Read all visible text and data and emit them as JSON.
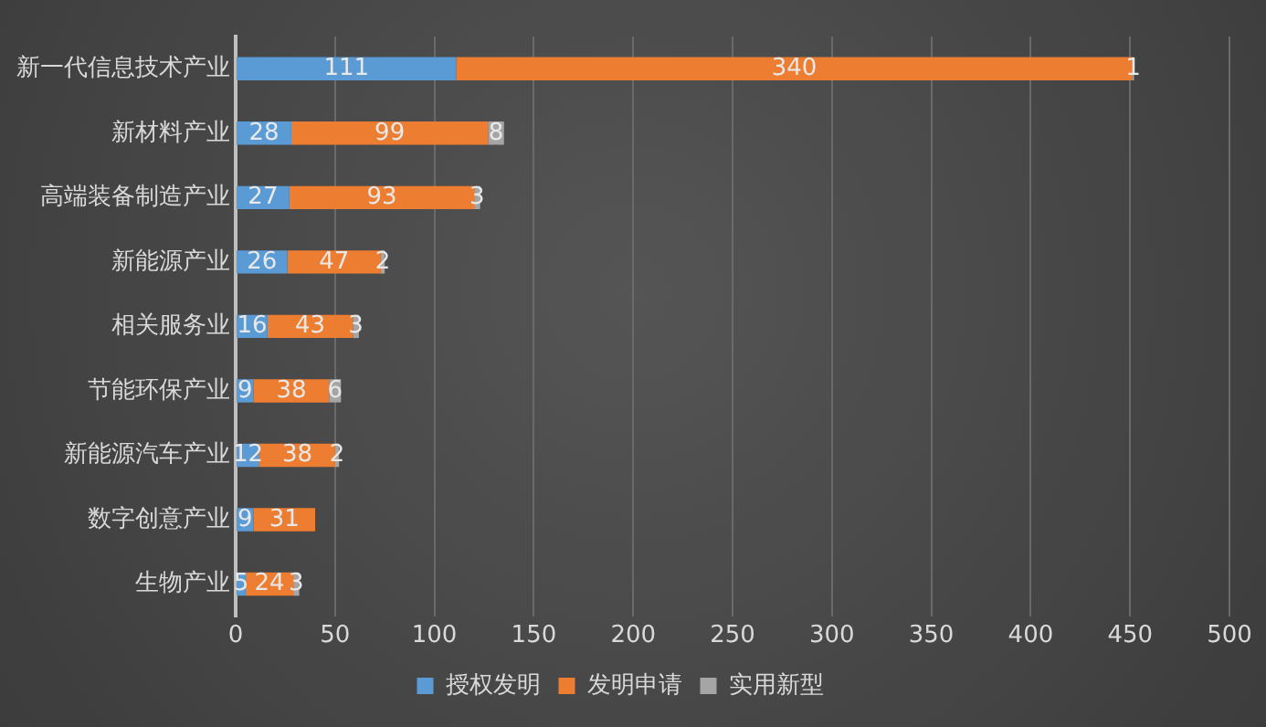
{
  "chart_data": {
    "type": "bar",
    "orientation": "horizontal",
    "stacked": true,
    "categories": [
      "新一代信息技术产业",
      "新材料产业",
      "高端装备制造产业",
      "新能源产业",
      "相关服务业",
      "节能环保产业",
      "新能源汽车产业",
      "数字创意产业",
      "生物产业"
    ],
    "series": [
      {
        "name": "授权发明",
        "color": "#5b9bd5",
        "values": [
          111,
          28,
          27,
          26,
          16,
          9,
          12,
          9,
          5
        ]
      },
      {
        "name": "发明申请",
        "color": "#ed7d31",
        "values": [
          340,
          99,
          93,
          47,
          43,
          38,
          38,
          31,
          24
        ]
      },
      {
        "name": "实用新型",
        "color": "#a5a5a5",
        "values": [
          1,
          8,
          3,
          2,
          3,
          6,
          2,
          null,
          3
        ]
      }
    ],
    "xlim": [
      0,
      500
    ],
    "xticks": [
      0,
      50,
      100,
      150,
      200,
      250,
      300,
      350,
      400,
      450,
      500
    ],
    "grid": "x",
    "legend": "bottom",
    "data_labels": true
  }
}
